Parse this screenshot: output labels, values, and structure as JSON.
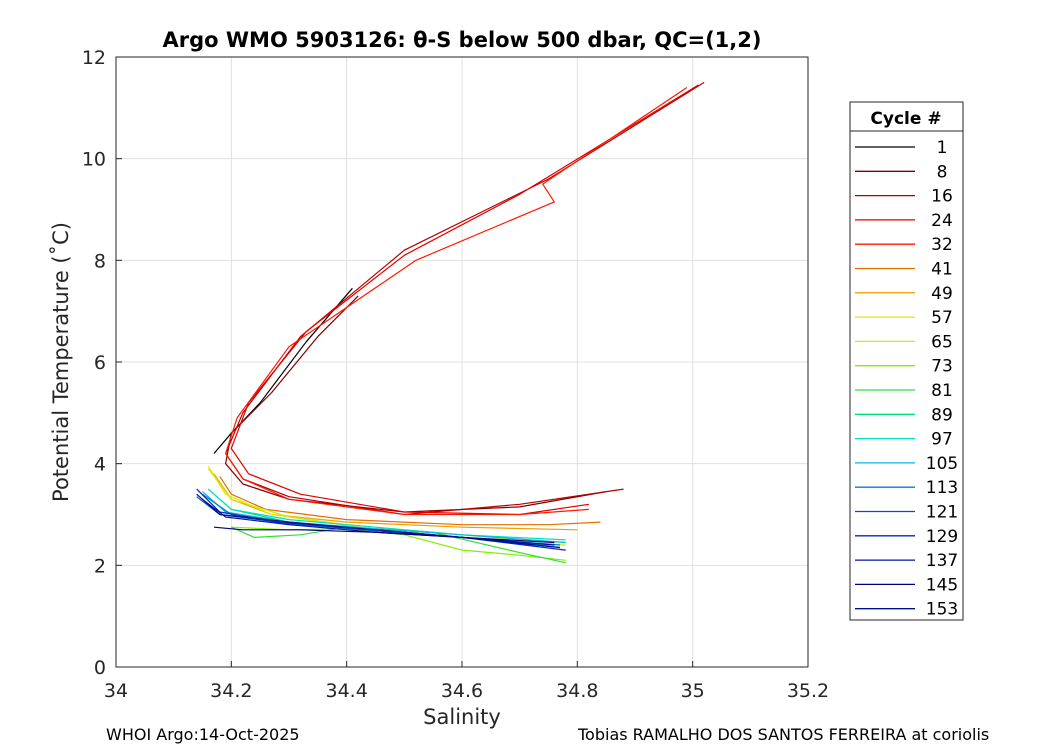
{
  "chart_data": {
    "type": "line",
    "title": "Argo WMO 5903126: θ-S below 500 dbar,  QC=(1,2)",
    "xlabel": "Salinity",
    "ylabel": "Potential Temperature (˚C)",
    "xlim": [
      34,
      35.2
    ],
    "ylim": [
      0,
      12
    ],
    "xticks": [
      "34",
      "34.2",
      "34.4",
      "34.6",
      "34.8",
      "35",
      "35.2"
    ],
    "yticks": [
      "0",
      "2",
      "4",
      "6",
      "8",
      "10",
      "12"
    ],
    "grid": true,
    "legend": {
      "title": "Cycle #",
      "placement": "right",
      "entries": [
        {
          "label": "1",
          "color": "#000000"
        },
        {
          "label": "8",
          "color": "#800000"
        },
        {
          "label": "16",
          "color": "#b40000"
        },
        {
          "label": "24",
          "color": "#e00000"
        },
        {
          "label": "32",
          "color": "#ff1a00"
        },
        {
          "label": "41",
          "color": "#e07000"
        },
        {
          "label": "49",
          "color": "#f0a000"
        },
        {
          "label": "57",
          "color": "#f0e000"
        },
        {
          "label": "65",
          "color": "#c8f000"
        },
        {
          "label": "73",
          "color": "#80f000"
        },
        {
          "label": "81",
          "color": "#30e030"
        },
        {
          "label": "89",
          "color": "#00e080"
        },
        {
          "label": "97",
          "color": "#00e0c0"
        },
        {
          "label": "105",
          "color": "#00b8e0"
        },
        {
          "label": "113",
          "color": "#0080d0"
        },
        {
          "label": "121",
          "color": "#0050c8"
        },
        {
          "label": "129",
          "color": "#0028c0"
        },
        {
          "label": "137",
          "color": "#0010a0"
        },
        {
          "label": "145",
          "color": "#000080"
        },
        {
          "label": "153",
          "color": "#00108c"
        }
      ]
    },
    "series": [
      {
        "name": "1",
        "color": "#000000",
        "x": [
          34.41,
          34.33,
          34.25,
          34.2,
          34.17
        ],
        "y": [
          7.45,
          6.4,
          5.2,
          4.6,
          4.2
        ]
      },
      {
        "name": "8",
        "color": "#800000",
        "x": [
          34.42,
          34.35,
          34.27,
          34.2,
          34.19,
          34.22,
          34.3,
          34.5,
          34.7,
          34.85
        ],
        "y": [
          7.3,
          6.5,
          5.4,
          4.6,
          4.0,
          3.6,
          3.3,
          3.05,
          3.15,
          3.45
        ]
      },
      {
        "name": "16",
        "color": "#b40000",
        "x": [
          35.02,
          34.75,
          34.5,
          34.32,
          34.22,
          34.19,
          34.22,
          34.3,
          34.5,
          34.7,
          34.88
        ],
        "y": [
          11.5,
          9.6,
          8.2,
          6.5,
          5.0,
          4.2,
          3.7,
          3.35,
          3.0,
          3.2,
          3.5
        ]
      },
      {
        "name": "24",
        "color": "#e00000",
        "x": [
          35.01,
          34.7,
          34.5,
          34.33,
          34.23,
          34.2,
          34.23,
          34.32,
          34.5,
          34.7,
          34.82
        ],
        "y": [
          11.45,
          9.3,
          8.1,
          6.6,
          5.2,
          4.3,
          3.8,
          3.4,
          3.05,
          3.0,
          3.2
        ]
      },
      {
        "name": "32",
        "color": "#ff1a00",
        "x": [
          34.99,
          34.74,
          34.76,
          34.52,
          34.3,
          34.21,
          34.19,
          34.22,
          34.3,
          34.5,
          34.7,
          34.82
        ],
        "y": [
          11.4,
          9.5,
          9.15,
          8.0,
          6.3,
          4.9,
          4.2,
          3.7,
          3.3,
          3.0,
          3.0,
          3.1
        ]
      },
      {
        "name": "41",
        "color": "#e07000",
        "x": [
          34.18,
          34.2,
          34.26,
          34.4,
          34.6,
          34.75,
          34.84
        ],
        "y": [
          3.75,
          3.4,
          3.1,
          2.9,
          2.8,
          2.8,
          2.85
        ]
      },
      {
        "name": "49",
        "color": "#f0a000",
        "x": [
          34.17,
          34.2,
          34.27,
          34.4,
          34.6,
          34.8
        ],
        "y": [
          3.8,
          3.3,
          3.0,
          2.85,
          2.75,
          2.7
        ]
      },
      {
        "name": "57",
        "color": "#f0e000",
        "x": [
          34.16,
          34.19,
          34.27,
          34.4,
          34.55,
          34.7,
          34.78
        ],
        "y": [
          3.95,
          3.4,
          3.0,
          2.8,
          2.65,
          2.5,
          2.45
        ]
      },
      {
        "name": "65",
        "color": "#c8f000",
        "x": [
          34.16,
          34.2,
          34.3,
          34.42,
          34.55,
          34.7,
          34.78
        ],
        "y": [
          3.9,
          3.3,
          2.95,
          2.75,
          2.6,
          2.45,
          2.4
        ]
      },
      {
        "name": "73",
        "color": "#80f000",
        "x": [
          34.2,
          34.3,
          34.4,
          34.5,
          34.6,
          34.7,
          34.78
        ],
        "y": [
          2.75,
          2.7,
          2.72,
          2.6,
          2.3,
          2.2,
          2.1
        ]
      },
      {
        "name": "81",
        "color": "#30e030",
        "x": [
          34.2,
          34.24,
          34.32,
          34.4,
          34.55,
          34.7,
          34.78
        ],
        "y": [
          2.75,
          2.55,
          2.6,
          2.75,
          2.65,
          2.25,
          2.05
        ]
      },
      {
        "name": "89",
        "color": "#00e080",
        "x": [
          34.16,
          34.2,
          34.3,
          34.45,
          34.6,
          34.75
        ],
        "y": [
          3.5,
          3.1,
          2.85,
          2.7,
          2.55,
          2.4
        ]
      },
      {
        "name": "97",
        "color": "#00e0c0",
        "x": [
          34.16,
          34.2,
          34.3,
          34.45,
          34.6,
          34.78
        ],
        "y": [
          3.5,
          3.1,
          2.9,
          2.75,
          2.6,
          2.5
        ]
      },
      {
        "name": "105",
        "color": "#00b8e0",
        "x": [
          34.15,
          34.19,
          34.3,
          34.45,
          34.6,
          34.78
        ],
        "y": [
          3.45,
          3.05,
          2.85,
          2.72,
          2.6,
          2.45
        ]
      },
      {
        "name": "113",
        "color": "#0080d0",
        "x": [
          34.15,
          34.2,
          34.3,
          34.45,
          34.6,
          34.77
        ],
        "y": [
          3.4,
          3.0,
          2.85,
          2.7,
          2.55,
          2.4
        ]
      },
      {
        "name": "121",
        "color": "#0050c8",
        "x": [
          34.14,
          34.18,
          34.3,
          34.45,
          34.6,
          34.77
        ],
        "y": [
          3.35,
          3.0,
          2.82,
          2.68,
          2.55,
          2.35
        ]
      },
      {
        "name": "129",
        "color": "#0028c0",
        "x": [
          34.14,
          34.18,
          34.28,
          34.45,
          34.6,
          34.78
        ],
        "y": [
          3.5,
          3.05,
          2.85,
          2.7,
          2.55,
          2.3
        ]
      },
      {
        "name": "137",
        "color": "#0010a0",
        "x": [
          34.15,
          34.19,
          34.3,
          34.45,
          34.6,
          34.76
        ],
        "y": [
          3.3,
          2.95,
          2.8,
          2.65,
          2.55,
          2.4
        ]
      },
      {
        "name": "145",
        "color": "#000080",
        "x": [
          34.17,
          34.22,
          34.32,
          34.45,
          34.6,
          34.76
        ],
        "y": [
          2.75,
          2.7,
          2.7,
          2.65,
          2.55,
          2.45
        ]
      },
      {
        "name": "153",
        "color": "#00108c",
        "x": [
          34.14,
          34.18,
          34.3,
          34.45,
          34.6,
          34.77
        ],
        "y": [
          3.4,
          3.0,
          2.85,
          2.7,
          2.55,
          2.35
        ]
      }
    ]
  },
  "footer": {
    "left": "WHOI Argo:14-Oct-2025",
    "right": "Tobias RAMALHO DOS SANTOS FERREIRA at coriolis"
  }
}
